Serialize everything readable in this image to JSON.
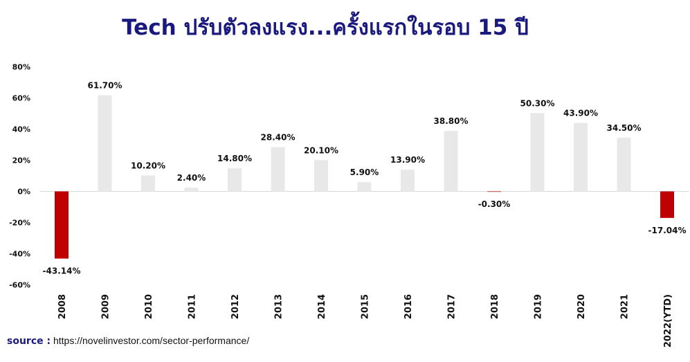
{
  "chart_data": {
    "type": "bar",
    "title": "Tech ปรับตัวลงแรง...ครั้งแรกในรอบ 15 ปี",
    "categories": [
      "2008",
      "2009",
      "2010",
      "2011",
      "2012",
      "2013",
      "2014",
      "2015",
      "2016",
      "2017",
      "2018",
      "2019",
      "2020",
      "2021",
      "2022(YTD)"
    ],
    "values": [
      -43.14,
      61.7,
      10.2,
      2.4,
      14.8,
      28.4,
      20.1,
      5.9,
      13.9,
      38.8,
      -0.3,
      50.3,
      43.9,
      34.5,
      -17.04
    ],
    "data_labels": [
      "-43.14%",
      "61.70%",
      "10.20%",
      "2.40%",
      "14.80%",
      "28.40%",
      "20.10%",
      "5.90%",
      "13.90%",
      "38.80%",
      "-0.30%",
      "50.30%",
      "43.90%",
      "34.50%",
      "-17.04%"
    ],
    "yticks": [
      80,
      60,
      40,
      20,
      0,
      -20,
      -40,
      -60
    ],
    "ytick_labels": [
      "80%",
      "60%",
      "40%",
      "20%",
      "0%",
      "-20%",
      "-40%",
      "-60%"
    ],
    "ylim": [
      -60,
      80
    ],
    "xlabel": "",
    "ylabel": "",
    "grid": false,
    "colors": {
      "positive": "#e8e8e8",
      "negative": "#c00000",
      "axis": "#d9d9d9",
      "text": "#111111"
    }
  },
  "source": {
    "label": "source :",
    "url": "https://novelinvestor.com/sector-performance/"
  }
}
